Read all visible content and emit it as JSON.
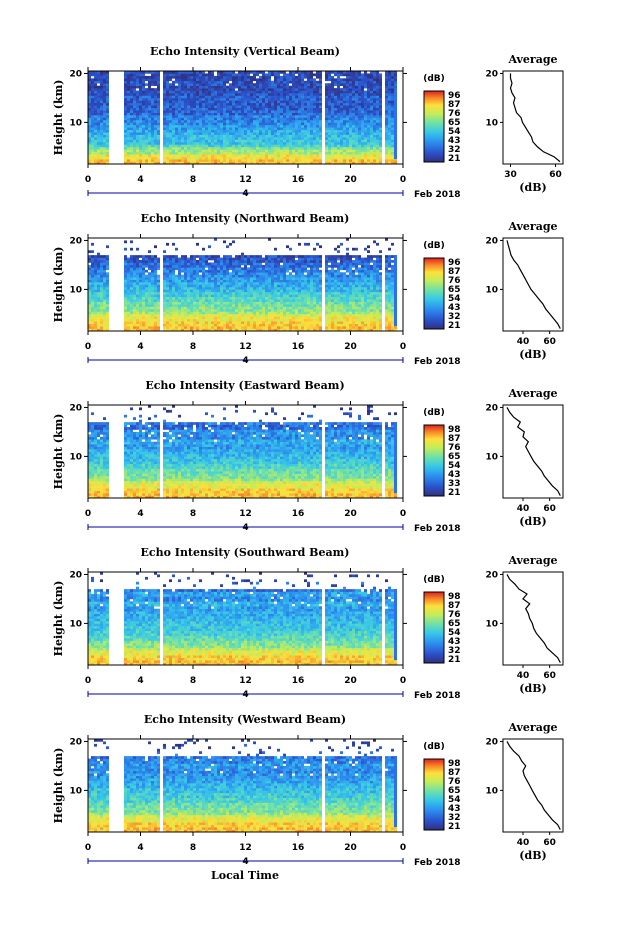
{
  "chart_data": [
    {
      "type": "heatmap",
      "title": "Echo Intensity (Vertical Beam)",
      "ylabel": "Height (km)",
      "xticks": [
        "0",
        "4",
        "8",
        "12",
        "16",
        "20",
        "0"
      ],
      "yticks": [
        "20",
        "10"
      ],
      "xlim": [
        0,
        24
      ],
      "ylim": [
        1.5,
        20.5
      ],
      "gaps_hours": [
        [
          1.6,
          2.7
        ],
        [
          5.4,
          5.7
        ],
        [
          17.7,
          18.0
        ],
        [
          22.4,
          22.6
        ]
      ],
      "colorbar": {
        "unit": "(dB)",
        "ticks": [
          "96",
          "87",
          "76",
          "65",
          "54",
          "43",
          "32",
          "21"
        ]
      },
      "profile": {
        "title": "Average",
        "xlabel": "(dB)",
        "xticks": [
          "30",
          "60"
        ],
        "xlim": [
          25,
          65
        ],
        "heights": [
          2,
          3,
          4,
          5,
          6,
          7,
          8,
          9,
          10,
          11,
          12,
          13,
          14,
          15,
          16,
          17,
          18,
          19,
          20
        ],
        "values": [
          63,
          59,
          52,
          48,
          45,
          44,
          42,
          40,
          38,
          37,
          34,
          33,
          32,
          33,
          31,
          30,
          31,
          30,
          30
        ]
      }
    },
    {
      "type": "heatmap",
      "title": "Echo Intensity (Northward Beam)",
      "ylabel": "Height (km)",
      "xticks": [
        "0",
        "4",
        "8",
        "12",
        "16",
        "20",
        "0"
      ],
      "yticks": [
        "20",
        "10"
      ],
      "xlim": [
        0,
        24
      ],
      "ylim": [
        1.5,
        20.5
      ],
      "gaps_hours": [
        [
          1.6,
          2.7
        ],
        [
          5.4,
          5.7
        ],
        [
          17.7,
          18.0
        ],
        [
          22.4,
          22.6
        ]
      ],
      "colorbar": {
        "unit": "(dB)",
        "ticks": [
          "96",
          "87",
          "76",
          "65",
          "54",
          "43",
          "32",
          "21"
        ]
      },
      "profile": {
        "title": "Average",
        "xlabel": "(dB)",
        "xticks": [
          "40",
          "60"
        ],
        "xlim": [
          25,
          70
        ],
        "heights": [
          2,
          3,
          4,
          5,
          6,
          7,
          8,
          9,
          10,
          11,
          12,
          13,
          14,
          15,
          16,
          17,
          18,
          19,
          20
        ],
        "values": [
          68,
          66,
          63,
          60,
          57,
          55,
          52,
          49,
          46,
          44,
          42,
          40,
          38,
          36,
          33,
          31,
          30,
          29,
          28
        ]
      }
    },
    {
      "type": "heatmap",
      "title": "Echo Intensity (Eastward Beam)",
      "ylabel": "Height (km)",
      "xticks": [
        "0",
        "4",
        "8",
        "12",
        "16",
        "20",
        "0"
      ],
      "yticks": [
        "20",
        "10"
      ],
      "xlim": [
        0,
        24
      ],
      "ylim": [
        1.5,
        20.5
      ],
      "gaps_hours": [
        [
          1.6,
          2.7
        ],
        [
          5.4,
          5.7
        ],
        [
          17.7,
          18.0
        ],
        [
          22.4,
          22.6
        ]
      ],
      "colorbar": {
        "unit": "(dB)",
        "ticks": [
          "98",
          "87",
          "76",
          "65",
          "54",
          "43",
          "33",
          "21"
        ]
      },
      "profile": {
        "title": "Average",
        "xlabel": "(dB)",
        "xticks": [
          "40",
          "60"
        ],
        "xlim": [
          25,
          70
        ],
        "heights": [
          2,
          3,
          4,
          5,
          6,
          7,
          8,
          9,
          10,
          11,
          12,
          13,
          14,
          15,
          16,
          17,
          18,
          19,
          20
        ],
        "values": [
          68,
          66,
          62,
          59,
          56,
          54,
          51,
          48,
          46,
          44,
          42,
          44,
          40,
          41,
          36,
          38,
          33,
          30,
          28
        ]
      }
    },
    {
      "type": "heatmap",
      "title": "Echo Intensity (Southward Beam)",
      "ylabel": "Height (km)",
      "xticks": [
        "0",
        "4",
        "8",
        "12",
        "16",
        "20",
        "0"
      ],
      "yticks": [
        "20",
        "10"
      ],
      "xlim": [
        0,
        24
      ],
      "ylim": [
        1.5,
        20.5
      ],
      "gaps_hours": [
        [
          1.6,
          2.7
        ],
        [
          5.4,
          5.7
        ],
        [
          17.7,
          18.0
        ],
        [
          22.4,
          22.6
        ]
      ],
      "colorbar": {
        "unit": "(dB)",
        "ticks": [
          "98",
          "87",
          "76",
          "65",
          "54",
          "43",
          "32",
          "21"
        ]
      },
      "profile": {
        "title": "Average",
        "xlabel": "(dB)",
        "xticks": [
          "40",
          "60"
        ],
        "xlim": [
          25,
          70
        ],
        "heights": [
          2,
          3,
          4,
          5,
          6,
          7,
          8,
          9,
          10,
          11,
          12,
          13,
          14,
          15,
          16,
          17,
          18,
          19,
          20
        ],
        "values": [
          68,
          66,
          62,
          58,
          56,
          53,
          50,
          48,
          47,
          45,
          44,
          42,
          45,
          40,
          43,
          37,
          34,
          30,
          28
        ]
      }
    },
    {
      "type": "heatmap",
      "title": "Echo Intensity (Westward Beam)",
      "ylabel": "Height (km)",
      "xticks": [
        "0",
        "4",
        "8",
        "12",
        "16",
        "20",
        "0"
      ],
      "yticks": [
        "20",
        "10"
      ],
      "xlim": [
        0,
        24
      ],
      "ylim": [
        1.5,
        20.5
      ],
      "gaps_hours": [
        [
          1.6,
          2.7
        ],
        [
          5.4,
          5.7
        ],
        [
          17.7,
          18.0
        ],
        [
          22.4,
          22.6
        ]
      ],
      "colorbar": {
        "unit": "(dB)",
        "ticks": [
          "98",
          "87",
          "76",
          "65",
          "54",
          "43",
          "32",
          "21"
        ]
      },
      "profile": {
        "title": "Average",
        "xlabel": "(dB)",
        "xticks": [
          "40",
          "60"
        ],
        "xlim": [
          25,
          70
        ],
        "heights": [
          2,
          3,
          4,
          5,
          6,
          7,
          8,
          9,
          10,
          11,
          12,
          13,
          14,
          15,
          16,
          17,
          18,
          19,
          20
        ],
        "values": [
          68,
          66,
          62,
          59,
          56,
          54,
          51,
          49,
          47,
          45,
          43,
          41,
          40,
          42,
          39,
          37,
          33,
          30,
          28
        ]
      }
    }
  ],
  "date_labels": [
    "4",
    "Feb 2018"
  ],
  "xlabel": "Local Time",
  "colors": {
    "colormap": [
      "#30307c",
      "#2b4fc8",
      "#2c8ff0",
      "#37c8e8",
      "#6fe0a8",
      "#c4ec5a",
      "#fde03c",
      "#f88a28",
      "#e02020"
    ],
    "axis": "#000000",
    "date_axis": "#0000a0"
  }
}
